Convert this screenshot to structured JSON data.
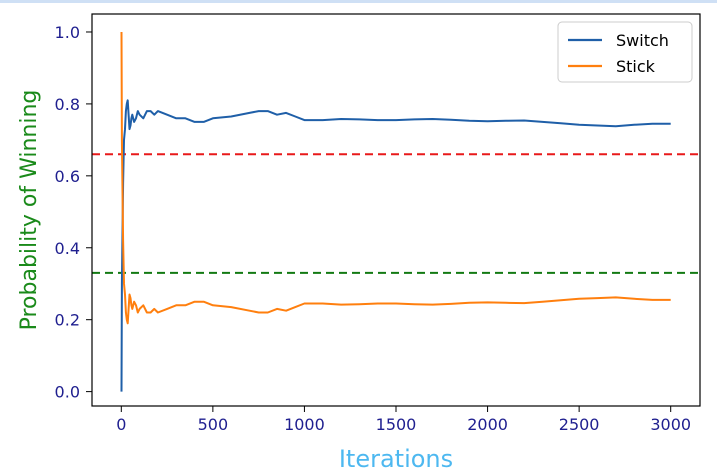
{
  "chart_data": {
    "type": "line",
    "title": "",
    "xlabel": "Iterations",
    "ylabel": "Probability of Winning",
    "xlim": [
      -160,
      3160
    ],
    "ylim": [
      -0.04,
      1.05
    ],
    "xticks": [
      0,
      500,
      1000,
      1500,
      2000,
      2500,
      3000
    ],
    "xtick_labels": [
      "0",
      "500",
      "1000",
      "1500",
      "2000",
      "2500",
      "3000"
    ],
    "yticks": [
      0.0,
      0.2,
      0.4,
      0.6,
      0.8,
      1.0
    ],
    "ytick_labels": [
      "0.0",
      "0.2",
      "0.4",
      "0.6",
      "0.8",
      "1.0"
    ],
    "grid": false,
    "legend_position": "top-right",
    "colors": {
      "xlabel": "#4db8f0",
      "ylabel": "#1a8a1a",
      "tick_labels": "#1f1f8f"
    },
    "series": [
      {
        "name": "Switch",
        "color": "#1f5fa8",
        "x": [
          1,
          3,
          6,
          10,
          15,
          20,
          25,
          30,
          35,
          40,
          45,
          50,
          55,
          60,
          70,
          80,
          90,
          100,
          120,
          140,
          160,
          180,
          200,
          250,
          300,
          350,
          400,
          450,
          500,
          600,
          700,
          750,
          800,
          850,
          900,
          950,
          1000,
          1100,
          1200,
          1300,
          1400,
          1500,
          1600,
          1700,
          1800,
          1900,
          2000,
          2100,
          2200,
          2300,
          2400,
          2500,
          2600,
          2700,
          2800,
          2900,
          3000
        ],
        "values": [
          0.0,
          0.3,
          0.42,
          0.58,
          0.7,
          0.73,
          0.78,
          0.8,
          0.81,
          0.77,
          0.73,
          0.74,
          0.76,
          0.77,
          0.75,
          0.76,
          0.78,
          0.77,
          0.76,
          0.78,
          0.78,
          0.77,
          0.78,
          0.77,
          0.76,
          0.76,
          0.75,
          0.75,
          0.76,
          0.765,
          0.775,
          0.78,
          0.78,
          0.77,
          0.775,
          0.765,
          0.755,
          0.755,
          0.758,
          0.757,
          0.755,
          0.755,
          0.757,
          0.758,
          0.756,
          0.753,
          0.752,
          0.753,
          0.754,
          0.75,
          0.746,
          0.742,
          0.74,
          0.738,
          0.742,
          0.745,
          0.745
        ]
      },
      {
        "name": "Stick",
        "color": "#ff7f0e",
        "x": [
          1,
          3,
          6,
          10,
          15,
          20,
          25,
          30,
          35,
          40,
          45,
          50,
          55,
          60,
          70,
          80,
          90,
          100,
          120,
          140,
          160,
          180,
          200,
          250,
          300,
          350,
          400,
          450,
          500,
          600,
          700,
          750,
          800,
          850,
          900,
          950,
          1000,
          1100,
          1200,
          1300,
          1400,
          1500,
          1600,
          1700,
          1800,
          1900,
          2000,
          2100,
          2200,
          2300,
          2400,
          2500,
          2600,
          2700,
          2800,
          2900,
          3000
        ],
        "values": [
          1.0,
          0.7,
          0.58,
          0.42,
          0.3,
          0.27,
          0.22,
          0.2,
          0.19,
          0.23,
          0.27,
          0.26,
          0.24,
          0.23,
          0.25,
          0.24,
          0.22,
          0.23,
          0.24,
          0.22,
          0.22,
          0.23,
          0.22,
          0.23,
          0.24,
          0.24,
          0.25,
          0.25,
          0.24,
          0.235,
          0.225,
          0.22,
          0.22,
          0.23,
          0.225,
          0.235,
          0.245,
          0.245,
          0.242,
          0.243,
          0.245,
          0.245,
          0.243,
          0.242,
          0.244,
          0.247,
          0.248,
          0.247,
          0.246,
          0.25,
          0.254,
          0.258,
          0.26,
          0.262,
          0.258,
          0.255,
          0.255
        ]
      }
    ],
    "reference_lines": [
      {
        "y": 0.66,
        "color": "#e8191a",
        "style": "dashed"
      },
      {
        "y": 0.33,
        "color": "#137a13",
        "style": "dashed"
      }
    ]
  }
}
